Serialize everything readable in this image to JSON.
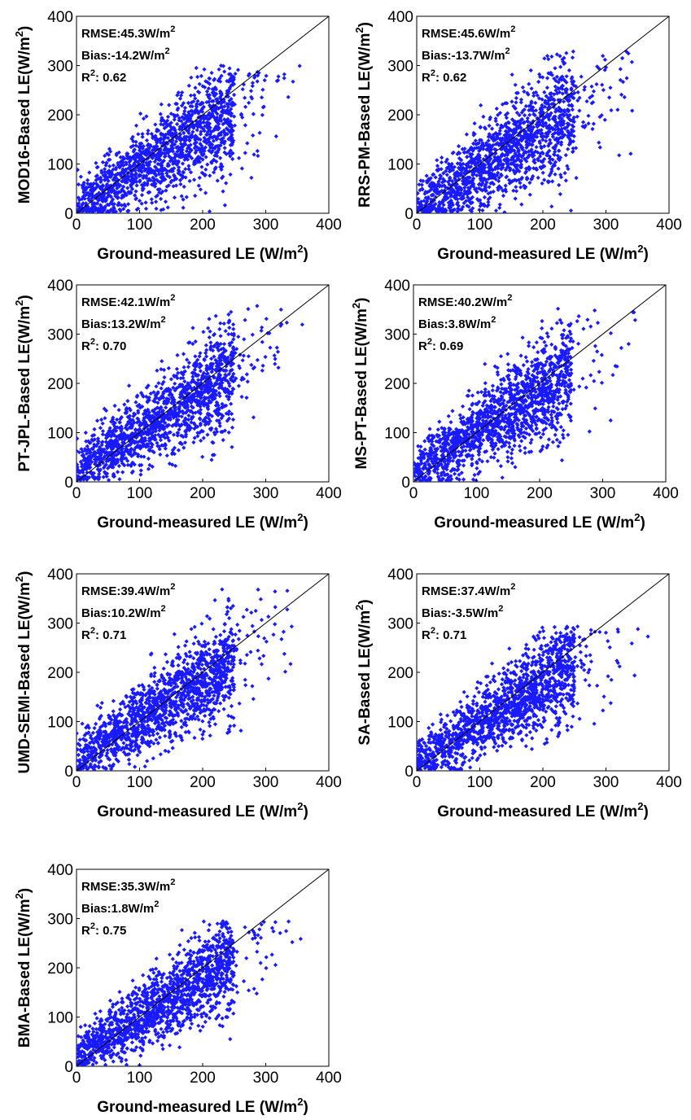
{
  "figure": {
    "x_label": "Ground-measured LE (W/m",
    "y_label_suffix": "LE(W/m",
    "unit_sup": "2",
    "unit_close": ")"
  },
  "chart_data": [
    {
      "type": "scatter",
      "model": "MOD16",
      "ylabel": "MOD16-Based",
      "xlabel": "Ground-measured LE (W/m2)",
      "xlim": [
        0,
        400
      ],
      "ylim": [
        0,
        400
      ],
      "xticks": [
        0,
        100,
        200,
        300,
        400
      ],
      "yticks": [
        0,
        100,
        200,
        300,
        400
      ],
      "reference_line": "1:1",
      "marker_color": "#1a1aff",
      "stats": {
        "rmse": "RMSE:45.3W/m",
        "bias": "Bias:-14.2W/m",
        "r2_label": "R",
        "r2_value": ": 0.62"
      },
      "cloud": {
        "bias": -14.2,
        "rmse": 45.3,
        "r2": 0.62,
        "ymax": 300
      }
    },
    {
      "type": "scatter",
      "model": "RRS-PM",
      "ylabel": "RRS-PM-Based",
      "xlabel": "Ground-measured LE (W/m2)",
      "xlim": [
        0,
        400
      ],
      "ylim": [
        0,
        400
      ],
      "xticks": [
        0,
        100,
        200,
        300,
        400
      ],
      "yticks": [
        0,
        100,
        200,
        300,
        400
      ],
      "reference_line": "1:1",
      "marker_color": "#1a1aff",
      "stats": {
        "rmse": "RMSE:45.6W/m",
        "bias": "Bias:-13.7W/m",
        "r2_label": "R",
        "r2_value": ": 0.62"
      },
      "cloud": {
        "bias": -13.7,
        "rmse": 45.6,
        "r2": 0.62,
        "ymax": 330
      }
    },
    {
      "type": "scatter",
      "model": "PT-JPL",
      "ylabel": "PT-JPL-Based",
      "xlabel": "Ground-measured LE (W/m2)",
      "xlim": [
        0,
        400
      ],
      "ylim": [
        0,
        400
      ],
      "xticks": [
        0,
        100,
        200,
        300,
        400
      ],
      "yticks": [
        0,
        100,
        200,
        300,
        400
      ],
      "reference_line": "1:1",
      "marker_color": "#1a1aff",
      "stats": {
        "rmse": "RMSE:42.1W/m",
        "bias": "Bias:13.2W/m",
        "r2_label": "R",
        "r2_value": ": 0.70"
      },
      "cloud": {
        "bias": 13.2,
        "rmse": 42.1,
        "r2": 0.7,
        "ymax": 360
      }
    },
    {
      "type": "scatter",
      "model": "MS-PT",
      "ylabel": "MS-PT-Based",
      "xlabel": "Ground-measured LE (W/m2)",
      "xlim": [
        0,
        400
      ],
      "ylim": [
        0,
        400
      ],
      "xticks": [
        0,
        100,
        200,
        300,
        400
      ],
      "yticks": [
        0,
        100,
        200,
        300,
        400
      ],
      "reference_line": "1:1",
      "marker_color": "#1a1aff",
      "stats": {
        "rmse": "RMSE:40.2W/m",
        "bias": "Bias:3.8W/m",
        "r2_label": "R",
        "r2_value": ": 0.69"
      },
      "cloud": {
        "bias": 3.8,
        "rmse": 40.2,
        "r2": 0.69,
        "ymax": 360
      }
    },
    {
      "type": "scatter",
      "model": "UMD-SEMI",
      "ylabel": "UMD-SEMI-Based",
      "xlabel": "Ground-measured LE (W/m2)",
      "xlim": [
        0,
        400
      ],
      "ylim": [
        0,
        400
      ],
      "xticks": [
        0,
        100,
        200,
        300,
        400
      ],
      "yticks": [
        0,
        100,
        200,
        300,
        400
      ],
      "reference_line": "1:1",
      "marker_color": "#1a1aff",
      "stats": {
        "rmse": "RMSE:39.4W/m",
        "bias": "Bias:10.2W/m",
        "r2_label": "R",
        "r2_value": ": 0.71"
      },
      "cloud": {
        "bias": 10.2,
        "rmse": 39.4,
        "r2": 0.71,
        "ymax": 370
      }
    },
    {
      "type": "scatter",
      "model": "SA",
      "ylabel": "SA-Based",
      "xlabel": "Ground-measured LE (W/m2)",
      "xlim": [
        0,
        400
      ],
      "ylim": [
        0,
        400
      ],
      "xticks": [
        0,
        100,
        200,
        300,
        400
      ],
      "yticks": [
        0,
        100,
        200,
        300,
        400
      ],
      "reference_line": "1:1",
      "marker_color": "#1a1aff",
      "stats": {
        "rmse": "RMSE:37.4W/m",
        "bias": "Bias:-3.5W/m",
        "r2_label": "R",
        "r2_value": ": 0.71"
      },
      "cloud": {
        "bias": -3.5,
        "rmse": 37.4,
        "r2": 0.71,
        "ymax": 295
      }
    },
    {
      "type": "scatter",
      "model": "BMA",
      "ylabel": "BMA-Based",
      "xlabel": "Ground-measured LE (W/m2)",
      "xlim": [
        0,
        400
      ],
      "ylim": [
        0,
        400
      ],
      "xticks": [
        0,
        100,
        200,
        300,
        400
      ],
      "yticks": [
        0,
        100,
        200,
        300,
        400
      ],
      "reference_line": "1:1",
      "marker_color": "#1a1aff",
      "stats": {
        "rmse": "RMSE:35.3W/m",
        "bias": "Bias:1.8W/m",
        "r2_label": "R",
        "r2_value": ": 0.75"
      },
      "cloud": {
        "bias": 1.8,
        "rmse": 35.3,
        "r2": 0.75,
        "ymax": 295
      }
    }
  ]
}
